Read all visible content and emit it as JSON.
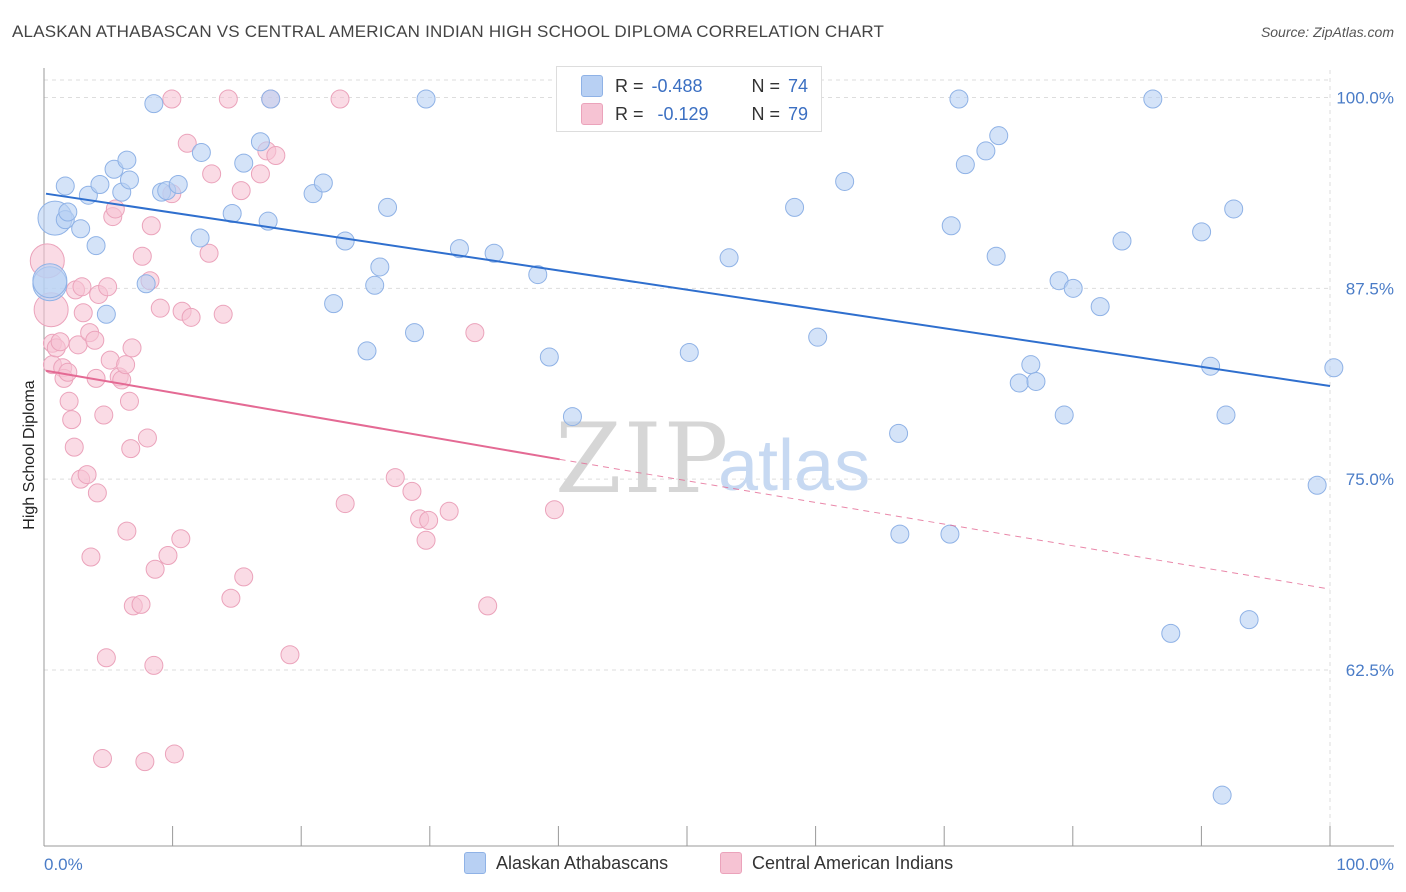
{
  "title": "ALASKAN ATHABASCAN VS CENTRAL AMERICAN INDIAN HIGH SCHOOL DIPLOMA CORRELATION CHART",
  "source": "Source: ZipAtlas.com",
  "watermark": {
    "zip": "ZIP",
    "atlas": "atlas"
  },
  "legend_top": {
    "rows": [
      {
        "r_label": "R =",
        "r_value": "-0.488",
        "n_label": "N =",
        "n_value": "74"
      },
      {
        "r_label": "R =",
        "r_value": "-0.129",
        "n_label": "N =",
        "n_value": "79"
      }
    ]
  },
  "colors": {
    "blue_fill": "#b8d0f3",
    "blue_stroke": "#8fb2e6",
    "blue_line": "#2f6fce",
    "pink_fill": "#f6c3d3",
    "pink_stroke": "#eba3bb",
    "pink_line": "#e46a94",
    "tick_text": "#4a7cc7",
    "grid": "#dddddd"
  },
  "chart_data": {
    "type": "scatter",
    "title": "ALASKAN ATHABASCAN VS CENTRAL AMERICAN INDIAN HIGH SCHOOL DIPLOMA CORRELATION CHART",
    "xlabel": "",
    "ylabel": "High School Diploma",
    "xlim": [
      0,
      100
    ],
    "ylim": [
      51.5,
      102.5
    ],
    "x_tick_labels": [
      "0.0%",
      "100.0%"
    ],
    "y_ticks": [
      62.5,
      75.0,
      87.5,
      100.0
    ],
    "y_tick_labels": [
      "62.5%",
      "75.0%",
      "87.5%",
      "100.0%"
    ],
    "grid": true,
    "legend": "bottom-center",
    "series": [
      {
        "name": "Alaskan Athabascans",
        "color": "#b8d0f3",
        "trend": {
          "x": [
            0,
            100
          ],
          "y": [
            93.7,
            81.1
          ],
          "style": "solid"
        },
        "points": [
          [
            0.3,
            87.8
          ],
          [
            0.7,
            92.1
          ],
          [
            1.5,
            94.2
          ],
          [
            1.5,
            92
          ],
          [
            1.7,
            92.5
          ],
          [
            2.7,
            91.4
          ],
          [
            3.3,
            93.6
          ],
          [
            3.9,
            90.3
          ],
          [
            4.2,
            94.3
          ],
          [
            4.7,
            85.8
          ],
          [
            5.3,
            95.3
          ],
          [
            5.9,
            93.8
          ],
          [
            6.3,
            95.9
          ],
          [
            6.5,
            94.6
          ],
          [
            7.8,
            87.8
          ],
          [
            8.4,
            99.6
          ],
          [
            9,
            93.8
          ],
          [
            9.4,
            93.9
          ],
          [
            10.3,
            94.3
          ],
          [
            12,
            90.8
          ],
          [
            12.1,
            96.4
          ],
          [
            14.5,
            92.4
          ],
          [
            15.4,
            95.7
          ],
          [
            16.7,
            97.1
          ],
          [
            17.3,
            91.9
          ],
          [
            17.5,
            99.9
          ],
          [
            20.8,
            93.7
          ],
          [
            21.6,
            94.4
          ],
          [
            22.4,
            86.5
          ],
          [
            23.3,
            90.6
          ],
          [
            25,
            83.4
          ],
          [
            25.6,
            87.7
          ],
          [
            26,
            88.9
          ],
          [
            26.6,
            92.8
          ],
          [
            28.7,
            84.6
          ],
          [
            29.6,
            99.9
          ],
          [
            32.2,
            90.1
          ],
          [
            34.9,
            89.8
          ],
          [
            38.3,
            88.4
          ],
          [
            39.2,
            83
          ],
          [
            41,
            79.1
          ],
          [
            50.1,
            83.3
          ],
          [
            53.2,
            89.5
          ],
          [
            58.3,
            92.8
          ],
          [
            60.1,
            84.3
          ],
          [
            62.2,
            94.5
          ],
          [
            66.4,
            78
          ],
          [
            66.5,
            71.4
          ],
          [
            70.4,
            71.4
          ],
          [
            70.5,
            91.6
          ],
          [
            71.1,
            99.9
          ],
          [
            71.6,
            95.6
          ],
          [
            73.2,
            96.5
          ],
          [
            74,
            89.6
          ],
          [
            74.2,
            97.5
          ],
          [
            75.8,
            81.3
          ],
          [
            76.7,
            82.5
          ],
          [
            77.1,
            81.4
          ],
          [
            78.9,
            88
          ],
          [
            80,
            87.5
          ],
          [
            79.3,
            79.2
          ],
          [
            82.1,
            86.3
          ],
          [
            83.8,
            90.6
          ],
          [
            86.2,
            99.9
          ],
          [
            87.6,
            64.9
          ],
          [
            90,
            91.2
          ],
          [
            90.7,
            82.4
          ],
          [
            91.6,
            54.3
          ],
          [
            91.9,
            79.2
          ],
          [
            92.5,
            92.7
          ],
          [
            93.7,
            65.8
          ],
          [
            99,
            74.6
          ],
          [
            100.3,
            82.3
          ],
          [
            0.3,
            88
          ]
        ]
      },
      {
        "name": "Central American Indians",
        "color": "#f6c3d3",
        "trend": {
          "x": [
            0,
            40
          ],
          "y": [
            82.1,
            76.3
          ],
          "style": "solid",
          "extended": {
            "x": [
              40,
              100
            ],
            "y": [
              76.3,
              67.8
            ],
            "style": "dashed"
          }
        },
        "points": [
          [
            0.1,
            89.3
          ],
          [
            0.4,
            86.1
          ],
          [
            0.5,
            83.9
          ],
          [
            0.5,
            82.5
          ],
          [
            0.8,
            83.6
          ],
          [
            1.1,
            84
          ],
          [
            1.3,
            82.3
          ],
          [
            1.4,
            81.6
          ],
          [
            1.7,
            82
          ],
          [
            1.8,
            80.1
          ],
          [
            2,
            78.9
          ],
          [
            2.2,
            77.1
          ],
          [
            2.3,
            87.4
          ],
          [
            2.5,
            83.8
          ],
          [
            2.7,
            75
          ],
          [
            2.8,
            87.6
          ],
          [
            2.9,
            85.9
          ],
          [
            3.2,
            75.3
          ],
          [
            3.4,
            84.6
          ],
          [
            3.5,
            69.9
          ],
          [
            3.8,
            84.1
          ],
          [
            3.9,
            81.6
          ],
          [
            4,
            74.1
          ],
          [
            4.1,
            87.1
          ],
          [
            4.5,
            79.2
          ],
          [
            4.4,
            56.7
          ],
          [
            4.7,
            63.3
          ],
          [
            4.8,
            87.6
          ],
          [
            5,
            82.8
          ],
          [
            5.2,
            92.2
          ],
          [
            5.4,
            92.7
          ],
          [
            5.7,
            81.7
          ],
          [
            5.9,
            81.5
          ],
          [
            6.2,
            82.5
          ],
          [
            6.3,
            71.6
          ],
          [
            6.5,
            80.1
          ],
          [
            6.6,
            77
          ],
          [
            6.7,
            83.6
          ],
          [
            6.8,
            66.7
          ],
          [
            7.4,
            66.8
          ],
          [
            7.5,
            89.6
          ],
          [
            7.7,
            56.5
          ],
          [
            7.9,
            77.7
          ],
          [
            8.1,
            88
          ],
          [
            8.2,
            91.6
          ],
          [
            8.4,
            62.8
          ],
          [
            8.5,
            69.1
          ],
          [
            8.9,
            86.2
          ],
          [
            9.5,
            70
          ],
          [
            9.8,
            93.7
          ],
          [
            9.8,
            99.9
          ],
          [
            10,
            57
          ],
          [
            10.5,
            71.1
          ],
          [
            10.6,
            86
          ],
          [
            11,
            97
          ],
          [
            11.3,
            85.6
          ],
          [
            12.7,
            89.8
          ],
          [
            12.9,
            95
          ],
          [
            13.8,
            85.8
          ],
          [
            14.4,
            67.2
          ],
          [
            15.2,
            93.9
          ],
          [
            15.4,
            68.6
          ],
          [
            16.7,
            95
          ],
          [
            17.2,
            96.5
          ],
          [
            17.9,
            96.2
          ],
          [
            19,
            63.5
          ],
          [
            22.9,
            99.9
          ],
          [
            23.3,
            73.4
          ],
          [
            27.2,
            75.1
          ],
          [
            28.5,
            74.2
          ],
          [
            29.1,
            72.4
          ],
          [
            29.6,
            71
          ],
          [
            29.8,
            72.3
          ],
          [
            31.4,
            72.9
          ],
          [
            33.4,
            84.6
          ],
          [
            34.4,
            66.7
          ],
          [
            39.6,
            73
          ],
          [
            17.5,
            99.9
          ],
          [
            14.2,
            99.9
          ]
        ]
      }
    ]
  },
  "bottom_legend": [
    "Alaskan Athabascans",
    "Central American Indians"
  ]
}
